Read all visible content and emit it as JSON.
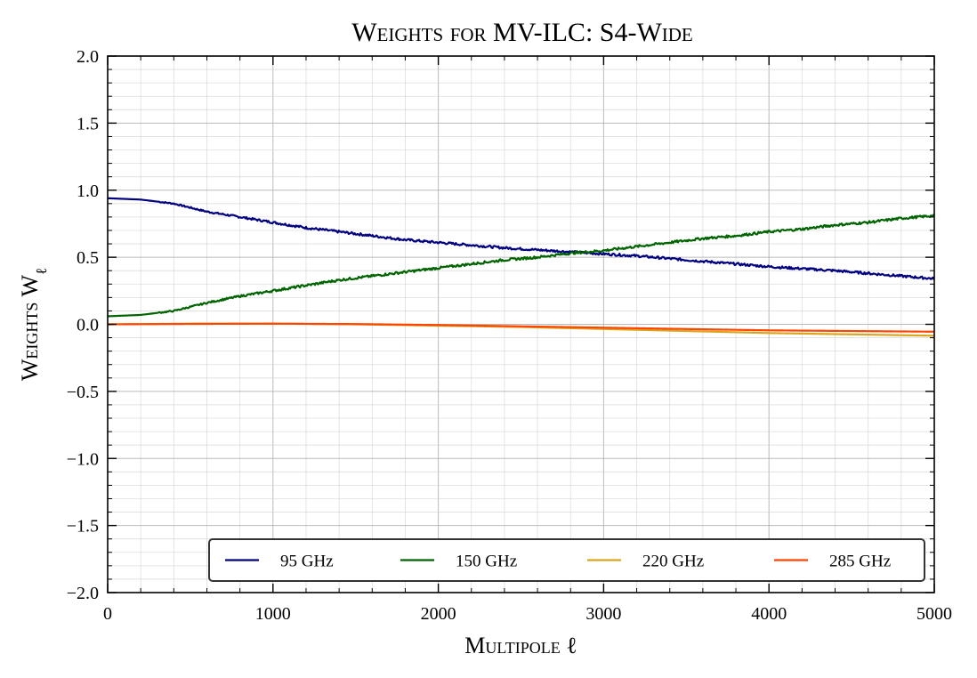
{
  "chart_data": {
    "type": "line",
    "title": "Weights for MV-ILC: S4-Wide",
    "xlabel": "Multipole ℓ",
    "ylabel": "Weights W_ℓ",
    "xlim": [
      0,
      5000
    ],
    "ylim": [
      -2.0,
      2.0
    ],
    "xticks": [
      0,
      1000,
      2000,
      3000,
      4000,
      5000
    ],
    "xtick_labels": [
      "0",
      "1000",
      "2000",
      "3000",
      "4000",
      "5000"
    ],
    "yticks": [
      2.0,
      1.5,
      1.0,
      0.5,
      0.0,
      -0.5,
      -1.0,
      -1.5,
      -2.0
    ],
    "ytick_labels": [
      "2.0",
      "1.5",
      "1.0",
      "0.5",
      "0.0",
      "−0.5",
      "−1.0",
      "−1.5",
      "−2.0"
    ],
    "grid": true,
    "legend_position": "bottom-right",
    "series": [
      {
        "name": "95 GHz",
        "color": "#000080",
        "x": [
          0,
          200,
          400,
          600,
          800,
          1000,
          1200,
          1400,
          1600,
          1800,
          2000,
          2200,
          2400,
          2600,
          2800,
          3000,
          3200,
          3400,
          3600,
          3800,
          4000,
          4200,
          4400,
          4600,
          4800,
          5000
        ],
        "y": [
          0.94,
          0.93,
          0.9,
          0.84,
          0.8,
          0.76,
          0.72,
          0.69,
          0.66,
          0.63,
          0.61,
          0.59,
          0.57,
          0.555,
          0.54,
          0.525,
          0.51,
          0.49,
          0.47,
          0.45,
          0.43,
          0.415,
          0.4,
          0.38,
          0.36,
          0.34
        ]
      },
      {
        "name": "150 GHz",
        "color": "#006400",
        "x": [
          0,
          200,
          400,
          600,
          800,
          1000,
          1200,
          1400,
          1600,
          1800,
          2000,
          2200,
          2400,
          2600,
          2800,
          3000,
          3200,
          3400,
          3600,
          3800,
          4000,
          4200,
          4400,
          4600,
          4800,
          5000
        ],
        "y": [
          0.06,
          0.07,
          0.1,
          0.16,
          0.21,
          0.25,
          0.29,
          0.33,
          0.36,
          0.39,
          0.42,
          0.45,
          0.48,
          0.5,
          0.53,
          0.55,
          0.58,
          0.61,
          0.64,
          0.66,
          0.69,
          0.71,
          0.74,
          0.76,
          0.79,
          0.81
        ]
      },
      {
        "name": "220 GHz",
        "color": "#DAA520",
        "x": [
          0,
          500,
          1000,
          1500,
          2000,
          2500,
          3000,
          3500,
          4000,
          4500,
          5000
        ],
        "y": [
          0.0,
          0.005,
          0.005,
          0.0,
          -0.01,
          -0.02,
          -0.035,
          -0.05,
          -0.065,
          -0.075,
          -0.085
        ]
      },
      {
        "name": "285 GHz",
        "color": "#FF4500",
        "x": [
          0,
          500,
          1000,
          1500,
          2000,
          2500,
          3000,
          3500,
          4000,
          4500,
          5000
        ],
        "y": [
          0.0,
          0.003,
          0.005,
          0.002,
          -0.005,
          -0.015,
          -0.025,
          -0.035,
          -0.045,
          -0.05,
          -0.055
        ]
      }
    ]
  }
}
